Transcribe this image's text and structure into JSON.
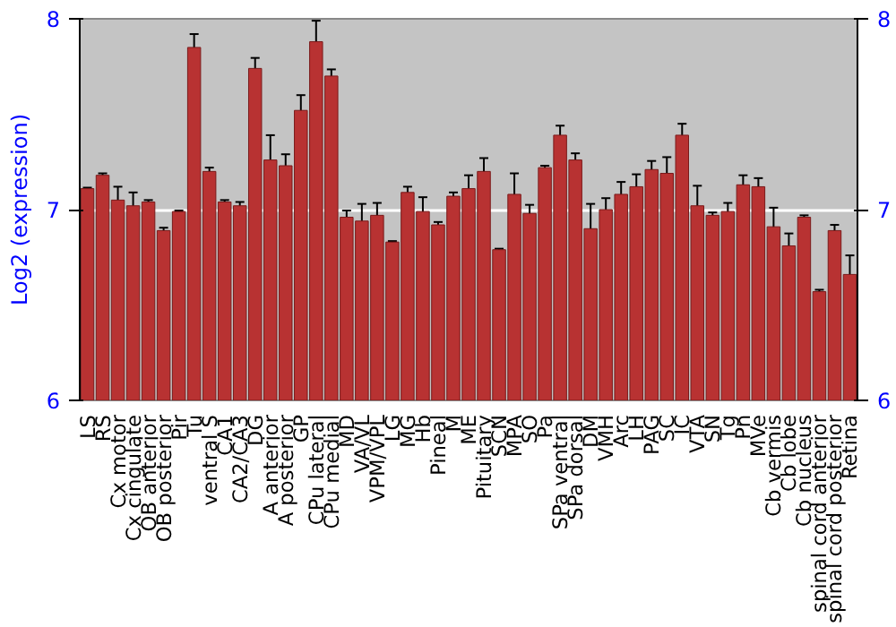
{
  "chart_data": {
    "type": "bar",
    "ylabel": "Log2 (expression)",
    "categories": [
      "LS",
      "RS",
      "Cx motor",
      "Cx cingulate",
      "OB anterior",
      "OB posterior",
      "Pir",
      "Tu",
      "ventral S",
      "CA1",
      "CA2/CA3",
      "DG",
      "A anterior",
      "A posterior",
      "GP",
      "CPu lateral",
      "CPu medial",
      "MD",
      "VA/VL",
      "VPM/VPL",
      "LG",
      "MG",
      "Hb",
      "Pineal",
      "M",
      "ME",
      "Pituitary",
      "SCN",
      "MPA",
      "SO",
      "Pa",
      "SPa ventral",
      "SPa dorsal",
      "DM",
      "VMH",
      "Arc",
      "LH",
      "PAG",
      "SC",
      "IC",
      "VTA",
      "SN",
      "Tg",
      "Pn",
      "MVe",
      "Cb vermis",
      "Cb lobe",
      "Cb nucleus",
      "spinal cord anterior",
      "spinal cord posterior",
      "Retina"
    ],
    "values": [
      7.11,
      7.18,
      7.05,
      7.02,
      7.04,
      6.89,
      6.99,
      7.85,
      7.2,
      7.04,
      7.02,
      7.74,
      7.26,
      7.23,
      7.52,
      7.88,
      7.7,
      6.96,
      6.94,
      6.97,
      6.83,
      7.09,
      6.99,
      6.92,
      7.07,
      7.11,
      7.2,
      6.79,
      7.08,
      6.98,
      7.22,
      7.39,
      7.26,
      6.9,
      7.0,
      7.08,
      7.12,
      7.21,
      7.19,
      7.39,
      7.02,
      6.97,
      6.99,
      7.13,
      7.12,
      6.91,
      6.81,
      6.96,
      6.57,
      6.89,
      6.66
    ],
    "errors": [
      0.005,
      0.01,
      0.07,
      0.07,
      0.01,
      0.015,
      0.005,
      0.07,
      0.02,
      0.01,
      0.02,
      0.055,
      0.13,
      0.06,
      0.08,
      0.11,
      0.035,
      0.035,
      0.09,
      0.065,
      0.005,
      0.03,
      0.075,
      0.015,
      0.02,
      0.07,
      0.07,
      0.005,
      0.11,
      0.045,
      0.01,
      0.05,
      0.035,
      0.13,
      0.06,
      0.065,
      0.065,
      0.045,
      0.085,
      0.06,
      0.105,
      0.015,
      0.045,
      0.05,
      0.045,
      0.1,
      0.065,
      0.01,
      0.01,
      0.03,
      0.1
    ],
    "color": "#b83232",
    "ylim": [
      6,
      8
    ],
    "yticks": [
      6,
      7,
      8
    ],
    "y2lim": [
      6,
      8
    ],
    "y2ticks": [
      6,
      7,
      8
    ],
    "grid": "y"
  }
}
